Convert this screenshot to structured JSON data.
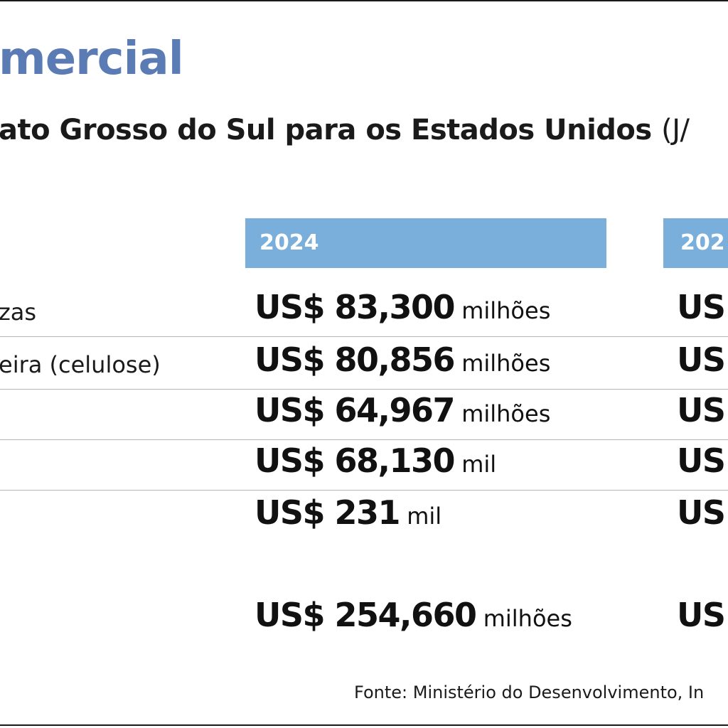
{
  "headline": "mercial",
  "subtitle": {
    "text": "ato Grosso do Sul para os Estados Unidos",
    "paren": "(J/"
  },
  "columns": [
    "2024",
    "202"
  ],
  "rows": [
    {
      "label": "zas",
      "value_2024": "US$ 83,300",
      "unit_2024": "milhões",
      "value_next": "US"
    },
    {
      "label": "eira (celulose)",
      "value_2024": "US$ 80,856",
      "unit_2024": "milhões",
      "value_next": "US"
    },
    {
      "label": "",
      "value_2024": "US$ 64,967",
      "unit_2024": "milhões",
      "value_next": "US"
    },
    {
      "label": "",
      "value_2024": "US$ 68,130",
      "unit_2024": "mil",
      "value_next": "US"
    },
    {
      "label": "",
      "value_2024": "US$ 231",
      "unit_2024": "mil",
      "value_next": "US"
    }
  ],
  "total": {
    "value_2024": "US$ 254,660",
    "unit_2024": "milhões",
    "value_next": "US"
  },
  "source": "Fonte: Ministério do Desenvolvimento, In",
  "colors": {
    "headline": "#5a7bb3",
    "year_band": "#7aafdc",
    "rule": "#b5b5b5"
  },
  "chart_data": {
    "type": "table",
    "columns": [
      "2024",
      "202"
    ],
    "rows": [
      {
        "label": "zas",
        "2024": "US$ 83,300 milhões"
      },
      {
        "label": "eira (celulose)",
        "2024": "US$ 80,856 milhões"
      },
      {
        "label": "",
        "2024": "US$ 64,967 milhões"
      },
      {
        "label": "",
        "2024": "US$ 68,130 mil"
      },
      {
        "label": "",
        "2024": "US$ 231 mil"
      }
    ],
    "total": {
      "2024": "US$ 254,660 milhões"
    }
  }
}
